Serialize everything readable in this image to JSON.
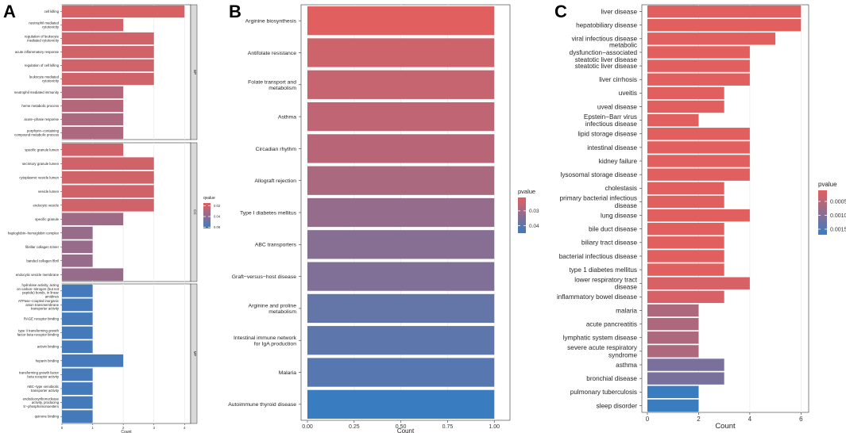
{
  "chart_data": [
    {
      "panel": "A",
      "type": "bar",
      "orientation": "horizontal",
      "xlabel": "Count",
      "xlim": [
        0,
        4.2
      ],
      "xticks": [
        0,
        1,
        2,
        3,
        4
      ],
      "facets": [
        {
          "strip": "BP",
          "categories": [
            "cell killing",
            "neutrophil mediated\ncytotoxicity",
            "regulation of leukocyte\nmediated cytotoxicity",
            "acute inflammatory response",
            "regulation of cell killing",
            "leukocyte mediated\ncytotoxicity",
            "neutrophil mediated immunity",
            "heme metabolic process",
            "acute−phase response",
            "porphyrin−containing\ncompound metabolic process"
          ],
          "values": [
            4,
            2,
            3,
            3,
            3,
            3,
            2,
            2,
            2,
            2
          ],
          "qvalue": [
            0.018,
            0.019,
            0.02,
            0.02,
            0.02,
            0.02,
            0.028,
            0.028,
            0.03,
            0.03
          ]
        },
        {
          "strip": "CC",
          "categories": [
            "specific granule lumen",
            "secretory granule lumen",
            "cytoplasmic vesicle lumen",
            "vesicle lumen",
            "endocytic vesicle",
            "specific granule",
            "haptoglobin−hemoglobin complex",
            "fibrillar collagen trimer",
            "banded collagen fibril",
            "endocytic vesicle membrane"
          ],
          "values": [
            2,
            3,
            3,
            3,
            3,
            2,
            1,
            1,
            1,
            2
          ],
          "qvalue": [
            0.02,
            0.02,
            0.02,
            0.02,
            0.02,
            0.034,
            0.036,
            0.036,
            0.036,
            0.036
          ]
        },
        {
          "strip": "MF",
          "categories": [
            "hydrolase activity, acting\non carbon−nitrogen (but not\npeptide) bonds, in linear\namidines",
            "ATPase−coupled inorganic\nanion transmembrane\ntransporter activity",
            "RAGE receptor binding",
            "type II transforming growth\nfactor beta receptor binding",
            "activin binding",
            "heparin binding",
            "transforming growth factor\nbeta receptor activity",
            "ABC−type xenobiotic\ntransporter activity",
            "endodeoxyribonuclease\nactivity, producing\n5'−phosphomonoesters",
            "quinone binding"
          ],
          "values": [
            1,
            1,
            1,
            1,
            1,
            2,
            1,
            1,
            1,
            1
          ],
          "qvalue": [
            0.059,
            0.059,
            0.059,
            0.059,
            0.059,
            0.059,
            0.059,
            0.059,
            0.059,
            0.059
          ]
        }
      ],
      "legend": {
        "title": "qvalue",
        "ticks": [
          "0.02",
          "0.04",
          "0.06"
        ],
        "tick_values": [
          0.02,
          0.04,
          0.06
        ],
        "range": [
          0.015,
          0.062
        ],
        "position": "right"
      }
    },
    {
      "panel": "B",
      "type": "bar",
      "orientation": "horizontal",
      "xlabel": "Count",
      "xlim": [
        0,
        1.05
      ],
      "xticks": [
        "0.00",
        "0.25",
        "0.50",
        "0.75",
        "1.00"
      ],
      "xtick_values": [
        0,
        0.25,
        0.5,
        0.75,
        1.0
      ],
      "categories": [
        "Arginine biosynthesis",
        "Antifolate resistance",
        "Folate transport and\nmetabolism",
        "Asthma",
        "Circadian rhythm",
        "Allograft rejection",
        "Type I diabetes mellitus",
        "ABC transporters",
        "Graft−versus−host disease",
        "Arginine and proline\nmetabolism",
        "Intestinal immune network\nfor IgA production",
        "Malaria",
        "Autoimmune thyroid disease"
      ],
      "values": [
        1,
        1,
        1,
        1,
        1,
        1,
        1,
        1,
        1,
        1,
        1,
        1,
        1
      ],
      "pvalue": [
        0.021,
        0.024,
        0.025,
        0.026,
        0.027,
        0.029,
        0.032,
        0.034,
        0.035,
        0.039,
        0.04,
        0.041,
        0.045
      ],
      "legend": {
        "title": "pvalue",
        "ticks": [
          "0.03",
          "0.04"
        ],
        "tick_values": [
          0.03,
          0.04
        ],
        "range": [
          0.021,
          0.045
        ],
        "position": "right"
      }
    },
    {
      "panel": "C",
      "type": "bar",
      "orientation": "horizontal",
      "xlabel": "Count",
      "xlim": [
        0,
        6.3
      ],
      "xticks": [
        0,
        2,
        4,
        6
      ],
      "categories": [
        "liver disease",
        "hepatobiliary disease",
        "viral infectious disease",
        "metabolic\ndysfunction−associated\nsteatotic liver disease",
        "steatotic liver disease",
        "liver cirrhosis",
        "uveitis",
        "uveal disease",
        "Epstein−Barr virus\ninfectious disease",
        "lipid storage disease",
        "intestinal disease",
        "kidney failure",
        "lysosomal storage disease",
        "cholestasis",
        "primary bacterial infectious\ndisease",
        "lung disease",
        "bile duct disease",
        "biliary tract disease",
        "bacterial infectious disease",
        "type 1 diabetes mellitus",
        "lower respiratory tract\ndisease",
        "inflammatory bowel disease",
        "malaria",
        "acute pancreatitis",
        "lymphatic system disease",
        "severe acute respiratory\nsyndrome",
        "asthma",
        "bronchial disease",
        "pulmonary tuberculosis",
        "sleep disorder"
      ],
      "values": [
        6,
        6,
        5,
        4,
        4,
        4,
        3,
        3,
        2,
        4,
        4,
        4,
        4,
        3,
        3,
        4,
        3,
        3,
        3,
        3,
        4,
        3,
        2,
        2,
        2,
        2,
        3,
        3,
        2,
        2
      ],
      "pvalue": [
        0.0001,
        0.0001,
        0.0001,
        0.0001,
        0.0001,
        0.0001,
        0.0001,
        0.0001,
        0.0001,
        0.0001,
        0.0001,
        0.0001,
        0.0001,
        0.0001,
        0.0001,
        0.0001,
        0.0001,
        0.0001,
        0.0001,
        0.0001,
        0.0002,
        0.0002,
        0.0006,
        0.0006,
        0.0006,
        0.0006,
        0.0011,
        0.0011,
        0.0017,
        0.0017
      ],
      "legend": {
        "title": "pvalue",
        "ticks": [
          "0.0005",
          "0.0010",
          "0.0015"
        ],
        "tick_values": [
          0.0005,
          0.001,
          0.0015
        ],
        "range": [
          0.0001,
          0.0017
        ],
        "position": "right"
      }
    }
  ],
  "panel_letters": [
    "A",
    "B",
    "C"
  ],
  "colors": {
    "high": "#e25f5f",
    "low": "#3a7cc0",
    "panel_bg": "#ffffff",
    "grid": "#ebebeb",
    "border": "#333333",
    "strip_bg": "#d9d9d9"
  }
}
